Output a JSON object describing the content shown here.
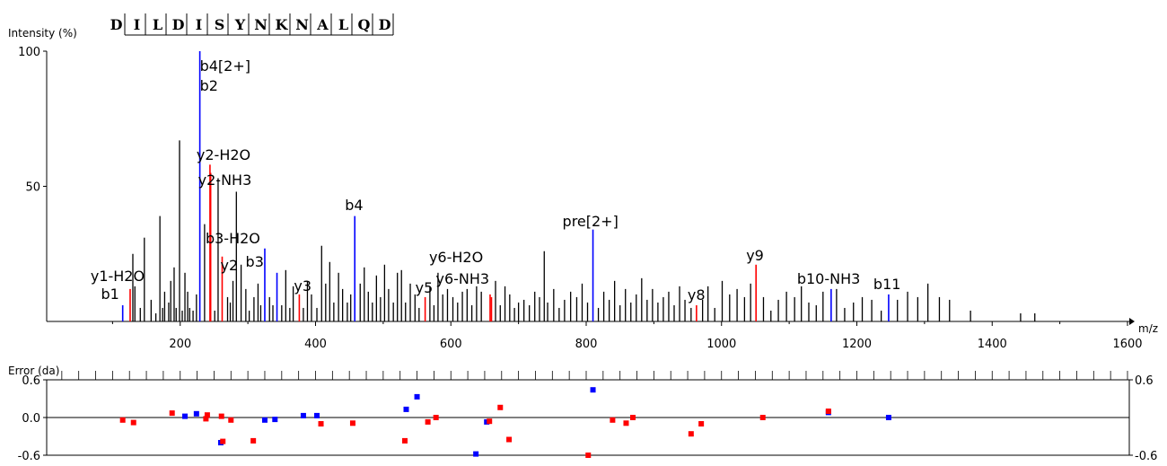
{
  "chart_data": [
    {
      "type": "bar",
      "title": "",
      "ylabel": "Intensity (%)",
      "xlabel": "m/z",
      "xlim": [
        0,
        1600
      ],
      "ylim": [
        0,
        100
      ],
      "xticks": [
        "200",
        "400",
        "600",
        "800",
        "1000",
        "1200",
        "1400",
        "1600"
      ],
      "yticks": [
        "100",
        "50"
      ],
      "sequence": [
        "D",
        "I",
        "L",
        "D",
        "I",
        "S",
        "Y",
        "N",
        "K",
        "N",
        "A",
        "L",
        "Q",
        "D"
      ],
      "colors": {
        "b_ion": "#0000ff",
        "y_ion": "#ff0000",
        "other": "#000000"
      },
      "series": [
        {
          "name": "annotated peaks",
          "peaks": [
            {
              "mz": 115,
              "intensity": 6,
              "ion": "b",
              "label": "b1"
            },
            {
              "mz": 126,
              "intensity": 12,
              "ion": "y",
              "label": "y1-H2O"
            },
            {
              "mz": 229,
              "intensity": 100,
              "ion": "b",
              "label": "b4[2+]\nb2"
            },
            {
              "mz": 244,
              "intensity": 58,
              "ion": "y",
              "label": "y2-H2O"
            },
            {
              "mz": 245,
              "intensity": 55,
              "ion": "y",
              "label": "y2-NH3"
            },
            {
              "mz": 262,
              "intensity": 24,
              "ion": "y",
              "label": "y2"
            },
            {
              "mz": 325,
              "intensity": 27,
              "ion": "b",
              "label": "b3-H2O"
            },
            {
              "mz": 343,
              "intensity": 18,
              "ion": "b",
              "label": "b3"
            },
            {
              "mz": 376,
              "intensity": 10,
              "ion": "y",
              "label": "y3"
            },
            {
              "mz": 458,
              "intensity": 39,
              "ion": "b",
              "label": "b4"
            },
            {
              "mz": 562,
              "intensity": 9,
              "ion": "y",
              "label": "y5"
            },
            {
              "mz": 658,
              "intensity": 10,
              "ion": "y",
              "label": "y6-H2O"
            },
            {
              "mz": 660,
              "intensity": 9,
              "ion": "y",
              "label": "y6-NH3"
            },
            {
              "mz": 810,
              "intensity": 34,
              "ion": "b",
              "label": "pre[2+]"
            },
            {
              "mz": 963,
              "intensity": 6,
              "ion": "y",
              "label": "y8"
            },
            {
              "mz": 1051,
              "intensity": 21,
              "ion": "y",
              "label": "y9"
            },
            {
              "mz": 1162,
              "intensity": 12,
              "ion": "b",
              "label": "b10-NH3"
            },
            {
              "mz": 1247,
              "intensity": 10,
              "ion": "b",
              "label": "b11"
            }
          ]
        },
        {
          "name": "other peaks",
          "mz": [
            130,
            133,
            141,
            147,
            157,
            164,
            170,
            174,
            177,
            183,
            186,
            191,
            194,
            199,
            203,
            207,
            211,
            214,
            219,
            224,
            236,
            251,
            256,
            270,
            274,
            278,
            283,
            290,
            297,
            302,
            309,
            315,
            319,
            332,
            337,
            350,
            356,
            362,
            367,
            382,
            388,
            394,
            402,
            409,
            415,
            421,
            427,
            434,
            440,
            447,
            452,
            466,
            472,
            478,
            484,
            490,
            496,
            502,
            508,
            515,
            521,
            527,
            533,
            540,
            547,
            553,
            569,
            575,
            581,
            588,
            595,
            603,
            610,
            617,
            624,
            631,
            638,
            645,
            666,
            673,
            680,
            687,
            694,
            700,
            708,
            716,
            724,
            731,
            738,
            743,
            752,
            760,
            768,
            777,
            786,
            794,
            802,
            818,
            826,
            834,
            842,
            850,
            858,
            866,
            874,
            882,
            890,
            898,
            906,
            914,
            922,
            930,
            938,
            946,
            955,
            972,
            980,
            990,
            1001,
            1012,
            1023,
            1034,
            1043,
            1062,
            1073,
            1084,
            1096,
            1108,
            1118,
            1129,
            1140,
            1150,
            1170,
            1182,
            1195,
            1208,
            1222,
            1236,
            1260,
            1275,
            1290,
            1305,
            1322,
            1337,
            1368,
            1442,
            1463
          ],
          "intensity": [
            25,
            13,
            5,
            31,
            8,
            3,
            39,
            5,
            11,
            7,
            15,
            20,
            5,
            67,
            4,
            18,
            11,
            5,
            4,
            10,
            36,
            4,
            53,
            9,
            7,
            15,
            48,
            21,
            12,
            4,
            9,
            14,
            6,
            9,
            6,
            6,
            19,
            5,
            13,
            5,
            15,
            10,
            5,
            28,
            14,
            22,
            7,
            18,
            12,
            7,
            10,
            14,
            20,
            11,
            7,
            17,
            9,
            21,
            12,
            7,
            18,
            19,
            7,
            14,
            10,
            5,
            13,
            6,
            18,
            10,
            12,
            9,
            7,
            11,
            12,
            6,
            13,
            11,
            15,
            6,
            13,
            10,
            5,
            7,
            8,
            6,
            11,
            9,
            26,
            7,
            12,
            5,
            8,
            11,
            9,
            14,
            7,
            5,
            11,
            8,
            15,
            6,
            12,
            7,
            10,
            16,
            8,
            12,
            7,
            9,
            11,
            6,
            13,
            8,
            5,
            8,
            13,
            5,
            15,
            10,
            12,
            9,
            14,
            9,
            4,
            8,
            11,
            9,
            13,
            7,
            6,
            11,
            12,
            5,
            7,
            9,
            8,
            4,
            8,
            11,
            9,
            14,
            9,
            8,
            4,
            3,
            3
          ]
        }
      ]
    },
    {
      "type": "scatter",
      "title": "",
      "ylabel": "Error (da)",
      "xlabel": "",
      "xlim": [
        0,
        1600
      ],
      "ylim": [
        -0.6,
        0.6
      ],
      "yticks": [
        "0.6",
        "0.0",
        "-0.6"
      ],
      "right_yticks": [
        "0.6",
        "-0.6"
      ],
      "series": [
        {
          "name": "b ions",
          "x": [
            207,
            224,
            260,
            325,
            340,
            382,
            402,
            534,
            550,
            637,
            653,
            810,
            1158,
            1247
          ],
          "y": [
            0.02,
            0.06,
            -0.4,
            -0.04,
            -0.03,
            0.03,
            0.03,
            0.13,
            0.33,
            -0.58,
            -0.07,
            0.44,
            0.08,
            0.0
          ]
        },
        {
          "name": "y ions",
          "x": [
            115,
            131,
            188,
            238,
            240,
            261,
            263,
            275,
            308,
            408,
            455,
            532,
            566,
            578,
            657,
            673,
            686,
            803,
            839,
            859,
            869,
            955,
            970,
            1061,
            1158
          ],
          "y": [
            -0.04,
            -0.08,
            0.07,
            -0.02,
            0.04,
            0.02,
            -0.38,
            -0.04,
            -0.37,
            -0.1,
            -0.09,
            -0.37,
            -0.07,
            0.0,
            -0.06,
            0.16,
            -0.35,
            -0.6,
            -0.04,
            -0.09,
            0.0,
            -0.26,
            -0.1,
            0.0,
            0.1
          ]
        }
      ]
    }
  ]
}
